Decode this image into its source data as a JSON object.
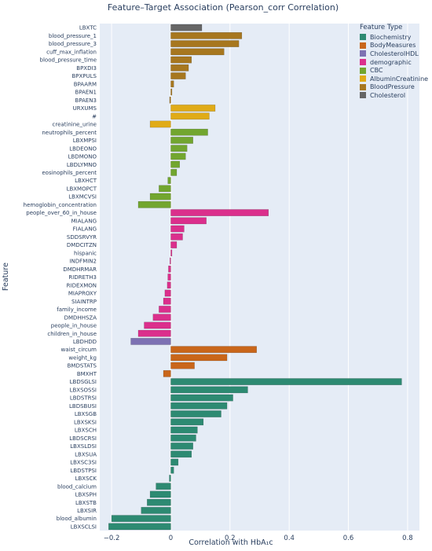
{
  "chart_data": {
    "type": "bar",
    "orientation": "horizontal",
    "title": "Feature–Target Association (Pearson_corr Correlation)",
    "xlabel": "Correlation with HbA₁c",
    "ylabel": "Feature",
    "xlim": [
      -0.24,
      0.84
    ],
    "xticks": [
      -0.2,
      0,
      0.2,
      0.4,
      0.6,
      0.8
    ],
    "xtick_labels": [
      "−0.2",
      "0",
      "0.2",
      "0.4",
      "0.6",
      "0.8"
    ],
    "grid": true,
    "legend_position": "top-right",
    "legend_title": "Feature Type",
    "legend": [
      {
        "name": "Biochemistry",
        "color": "#2d8a72"
      },
      {
        "name": "BodyMeasures",
        "color": "#c9661a"
      },
      {
        "name": "CholesterolHDL",
        "color": "#7d71b3"
      },
      {
        "name": "demographic",
        "color": "#db2f8c"
      },
      {
        "name": "CBC",
        "color": "#72a62f"
      },
      {
        "name": "AlbuminCreatinine",
        "color": "#e0ab17"
      },
      {
        "name": "BloodPressure",
        "color": "#a7771f"
      },
      {
        "name": "Cholesterol",
        "color": "#666666"
      }
    ],
    "series": [
      {
        "label": "LBXTC",
        "value": 0.105,
        "type": "Cholesterol"
      },
      {
        "label": "blood_pressure_1",
        "value": 0.24,
        "type": "BloodPressure"
      },
      {
        "label": "blood_pressure_3",
        "value": 0.23,
        "type": "BloodPressure"
      },
      {
        "label": "cuff_max_inflation",
        "value": 0.18,
        "type": "BloodPressure"
      },
      {
        "label": "blood_pressure_time",
        "value": 0.07,
        "type": "BloodPressure"
      },
      {
        "label": "BPXDI3",
        "value": 0.06,
        "type": "BloodPressure"
      },
      {
        "label": "BPXPULS",
        "value": 0.05,
        "type": "BloodPressure"
      },
      {
        "label": "BPAARM",
        "value": 0.01,
        "type": "BloodPressure"
      },
      {
        "label": "BPAEN1",
        "value": 0.004,
        "type": "BloodPressure"
      },
      {
        "label": "BPAEN3",
        "value": -0.004,
        "type": "BloodPressure"
      },
      {
        "label": "URXUMS",
        "value": 0.15,
        "type": "AlbuminCreatinine"
      },
      {
        "label": "#",
        "value": 0.13,
        "type": "AlbuminCreatinine"
      },
      {
        "label": "creatinine_urine",
        "value": -0.07,
        "type": "AlbuminCreatinine"
      },
      {
        "label": "neutrophils_percent",
        "value": 0.125,
        "type": "CBC"
      },
      {
        "label": "LBXMPSI",
        "value": 0.075,
        "type": "CBC"
      },
      {
        "label": "LBDEONO",
        "value": 0.055,
        "type": "CBC"
      },
      {
        "label": "LBDMONO",
        "value": 0.05,
        "type": "CBC"
      },
      {
        "label": "LBDLYMNO",
        "value": 0.03,
        "type": "CBC"
      },
      {
        "label": "eosinophils_percent",
        "value": 0.02,
        "type": "CBC"
      },
      {
        "label": "LBXHCT",
        "value": -0.01,
        "type": "CBC"
      },
      {
        "label": "LBXMOPCT",
        "value": -0.04,
        "type": "CBC"
      },
      {
        "label": "LBXMCVSI",
        "value": -0.07,
        "type": "CBC"
      },
      {
        "label": "hemoglobin_concentration",
        "value": -0.11,
        "type": "CBC"
      },
      {
        "label": "people_over_60_in_house",
        "value": 0.33,
        "type": "demographic"
      },
      {
        "label": "MIALANG",
        "value": 0.12,
        "type": "demographic"
      },
      {
        "label": "FIALANG",
        "value": 0.045,
        "type": "demographic"
      },
      {
        "label": "SDDSRVYR",
        "value": 0.04,
        "type": "demographic"
      },
      {
        "label": "DMDCITZN",
        "value": 0.02,
        "type": "demographic"
      },
      {
        "label": "hispanic",
        "value": 0.004,
        "type": "demographic"
      },
      {
        "label": "INDFMIN2",
        "value": -0.003,
        "type": "demographic"
      },
      {
        "label": "DMDHRMAR",
        "value": -0.008,
        "type": "demographic"
      },
      {
        "label": "RIDRETH3",
        "value": -0.01,
        "type": "demographic"
      },
      {
        "label": "RIDEXMON",
        "value": -0.012,
        "type": "demographic"
      },
      {
        "label": "MIAPROXY",
        "value": -0.02,
        "type": "demographic"
      },
      {
        "label": "SIAINTRP",
        "value": -0.025,
        "type": "demographic"
      },
      {
        "label": "family_income",
        "value": -0.04,
        "type": "demographic"
      },
      {
        "label": "DMDHHSZA",
        "value": -0.06,
        "type": "demographic"
      },
      {
        "label": "people_in_house",
        "value": -0.09,
        "type": "demographic"
      },
      {
        "label": "children_in_house",
        "value": -0.11,
        "type": "demographic"
      },
      {
        "label": "LBDHDD",
        "value": -0.135,
        "type": "CholesterolHDL"
      },
      {
        "label": "waist_circum",
        "value": 0.29,
        "type": "BodyMeasures"
      },
      {
        "label": "weight_kg",
        "value": 0.19,
        "type": "BodyMeasures"
      },
      {
        "label": "BMDSTATS",
        "value": 0.08,
        "type": "BodyMeasures"
      },
      {
        "label": "BMXHT",
        "value": -0.025,
        "type": "BodyMeasures"
      },
      {
        "label": "LBDSGLSI",
        "value": 0.78,
        "type": "Biochemistry"
      },
      {
        "label": "LBXSOSSI",
        "value": 0.26,
        "type": "Biochemistry"
      },
      {
        "label": "LBDSTRSI",
        "value": 0.21,
        "type": "Biochemistry"
      },
      {
        "label": "LBDSBUSI",
        "value": 0.19,
        "type": "Biochemistry"
      },
      {
        "label": "LBXSGB",
        "value": 0.17,
        "type": "Biochemistry"
      },
      {
        "label": "LBXSKSI",
        "value": 0.11,
        "type": "Biochemistry"
      },
      {
        "label": "LBXSCH",
        "value": 0.09,
        "type": "Biochemistry"
      },
      {
        "label": "LBDSCRSI",
        "value": 0.085,
        "type": "Biochemistry"
      },
      {
        "label": "LBXSLDSI",
        "value": 0.075,
        "type": "Biochemistry"
      },
      {
        "label": "LBXSUA",
        "value": 0.07,
        "type": "Biochemistry"
      },
      {
        "label": "LBXSC3SI",
        "value": 0.025,
        "type": "Biochemistry"
      },
      {
        "label": "LBDSTPSI",
        "value": 0.01,
        "type": "Biochemistry"
      },
      {
        "label": "LBXSCK",
        "value": -0.005,
        "type": "Biochemistry"
      },
      {
        "label": "blood_calcium",
        "value": -0.05,
        "type": "Biochemistry"
      },
      {
        "label": "LBXSPH",
        "value": -0.07,
        "type": "Biochemistry"
      },
      {
        "label": "LBXSTB",
        "value": -0.08,
        "type": "Biochemistry"
      },
      {
        "label": "LBXSIR",
        "value": -0.1,
        "type": "Biochemistry"
      },
      {
        "label": "blood_albumin",
        "value": -0.2,
        "type": "Biochemistry"
      },
      {
        "label": "LBXSCLSI",
        "value": -0.21,
        "type": "Biochemistry"
      }
    ]
  }
}
